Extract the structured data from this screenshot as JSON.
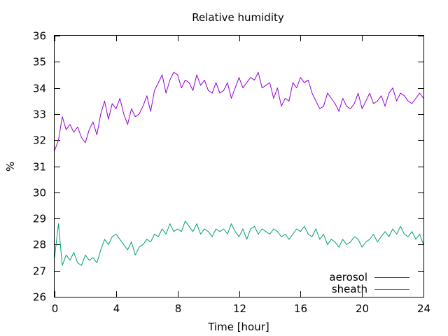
{
  "chart_data": {
    "type": "line",
    "title": "Relative humidity",
    "xlabel": "Time [hour]",
    "ylabel": "%",
    "xlim": [
      0,
      24
    ],
    "ylim": [
      26,
      36
    ],
    "xticks": [
      0,
      4,
      8,
      12,
      16,
      20,
      24
    ],
    "yticks": [
      26,
      27,
      28,
      29,
      30,
      31,
      32,
      33,
      34,
      35,
      36
    ],
    "grid": false,
    "legend_position": "bottom-right",
    "series": [
      {
        "name": "aerosol",
        "color": "#9400d3",
        "x": [
          0,
          0.25,
          0.5,
          0.75,
          1.0,
          1.25,
          1.5,
          1.75,
          2.0,
          2.25,
          2.5,
          2.75,
          3.0,
          3.25,
          3.5,
          3.75,
          4.0,
          4.25,
          4.5,
          4.75,
          5.0,
          5.25,
          5.5,
          5.75,
          6.0,
          6.25,
          6.5,
          6.75,
          7.0,
          7.25,
          7.5,
          7.75,
          8.0,
          8.25,
          8.5,
          8.75,
          9.0,
          9.25,
          9.5,
          9.75,
          10.0,
          10.25,
          10.5,
          10.75,
          11.0,
          11.25,
          11.5,
          11.75,
          12.0,
          12.25,
          12.5,
          12.75,
          13.0,
          13.25,
          13.5,
          13.75,
          14.0,
          14.25,
          14.5,
          14.75,
          15.0,
          15.25,
          15.5,
          15.75,
          16.0,
          16.25,
          16.5,
          16.75,
          17.0,
          17.25,
          17.5,
          17.75,
          18.0,
          18.25,
          18.5,
          18.75,
          19.0,
          19.25,
          19.5,
          19.75,
          20.0,
          20.25,
          20.5,
          20.75,
          21.0,
          21.25,
          21.5,
          21.75,
          22.0,
          22.25,
          22.5,
          22.75,
          23.0,
          23.25,
          23.5,
          23.75,
          24.0
        ],
        "y": [
          31.6,
          32.0,
          32.9,
          32.4,
          32.6,
          32.3,
          32.5,
          32.1,
          31.9,
          32.4,
          32.7,
          32.2,
          33.0,
          33.5,
          32.8,
          33.4,
          33.2,
          33.6,
          33.0,
          32.6,
          33.2,
          32.9,
          33.0,
          33.3,
          33.7,
          33.1,
          33.9,
          34.2,
          34.5,
          33.8,
          34.3,
          34.6,
          34.5,
          34.0,
          34.3,
          34.2,
          33.9,
          34.5,
          34.1,
          34.3,
          33.9,
          33.8,
          34.2,
          33.8,
          33.9,
          34.2,
          33.6,
          34.0,
          34.4,
          34.0,
          34.2,
          34.4,
          34.3,
          34.6,
          34.0,
          34.1,
          34.2,
          33.6,
          34.0,
          33.3,
          33.6,
          33.5,
          34.2,
          34.0,
          34.4,
          34.2,
          34.3,
          33.8,
          33.5,
          33.2,
          33.3,
          33.8,
          33.6,
          33.4,
          33.1,
          33.6,
          33.3,
          33.2,
          33.4,
          33.8,
          33.2,
          33.5,
          33.8,
          33.4,
          33.5,
          33.7,
          33.3,
          33.8,
          34.0,
          33.5,
          33.8,
          33.7,
          33.5,
          33.4,
          33.6,
          33.8,
          33.6
        ]
      },
      {
        "name": "sheath",
        "color": "#009e73",
        "x": [
          0,
          0.25,
          0.5,
          0.75,
          1.0,
          1.25,
          1.5,
          1.75,
          2.0,
          2.25,
          2.5,
          2.75,
          3.0,
          3.25,
          3.5,
          3.75,
          4.0,
          4.25,
          4.5,
          4.75,
          5.0,
          5.25,
          5.5,
          5.75,
          6.0,
          6.25,
          6.5,
          6.75,
          7.0,
          7.25,
          7.5,
          7.75,
          8.0,
          8.25,
          8.5,
          8.75,
          9.0,
          9.25,
          9.5,
          9.75,
          10.0,
          10.25,
          10.5,
          10.75,
          11.0,
          11.25,
          11.5,
          11.75,
          12.0,
          12.25,
          12.5,
          12.75,
          13.0,
          13.25,
          13.5,
          13.75,
          14.0,
          14.25,
          14.5,
          14.75,
          15.0,
          15.25,
          15.5,
          15.75,
          16.0,
          16.25,
          16.5,
          16.75,
          17.0,
          17.25,
          17.5,
          17.75,
          18.0,
          18.25,
          18.5,
          18.75,
          19.0,
          19.25,
          19.5,
          19.75,
          20.0,
          20.25,
          20.5,
          20.75,
          21.0,
          21.25,
          21.5,
          21.75,
          22.0,
          22.25,
          22.5,
          22.75,
          23.0,
          23.25,
          23.5,
          23.75,
          24.0
        ],
        "y": [
          27.5,
          28.8,
          27.2,
          27.6,
          27.4,
          27.7,
          27.3,
          27.2,
          27.6,
          27.4,
          27.5,
          27.3,
          27.8,
          28.2,
          28.0,
          28.3,
          28.4,
          28.2,
          28.0,
          27.8,
          28.1,
          27.6,
          27.9,
          28.0,
          28.2,
          28.1,
          28.4,
          28.3,
          28.6,
          28.4,
          28.8,
          28.5,
          28.6,
          28.5,
          28.9,
          28.7,
          28.5,
          28.8,
          28.4,
          28.6,
          28.5,
          28.3,
          28.6,
          28.5,
          28.6,
          28.4,
          28.8,
          28.5,
          28.3,
          28.6,
          28.2,
          28.6,
          28.7,
          28.4,
          28.6,
          28.5,
          28.4,
          28.6,
          28.5,
          28.3,
          28.4,
          28.2,
          28.4,
          28.6,
          28.5,
          28.7,
          28.4,
          28.3,
          28.6,
          28.2,
          28.4,
          28.0,
          28.2,
          28.1,
          27.9,
          28.2,
          28.0,
          28.1,
          28.3,
          28.2,
          27.9,
          28.1,
          28.2,
          28.4,
          28.1,
          28.3,
          28.5,
          28.3,
          28.6,
          28.4,
          28.7,
          28.4,
          28.3,
          28.5,
          28.2,
          28.4,
          28.0
        ]
      }
    ]
  }
}
